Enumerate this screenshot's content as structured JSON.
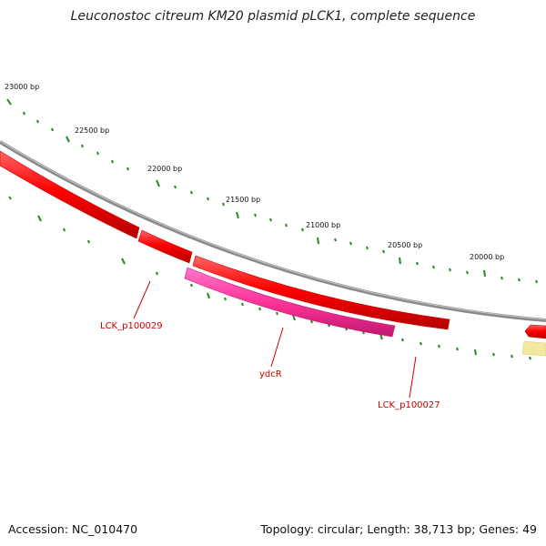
{
  "title": "Leuconostoc citreum KM20 plasmid pLCK1, complete sequence",
  "accession": "Accession: NC_010470",
  "summary": "Topology: circular; Length: 38,713 bp; Genes: 49",
  "tick_labels": [
    "23000 bp",
    "22500 bp",
    "22000 bp",
    "21500 bp",
    "21000 bp",
    "20500 bp",
    "20000 bp"
  ],
  "genes": [
    {
      "name": "LCK_p100029",
      "color": "#ff0000"
    },
    {
      "name": "ydcR",
      "color": "#ff3399"
    },
    {
      "name": "LCK_p100027",
      "color": "#ff0000"
    }
  ],
  "colors": {
    "backbone": "#808080",
    "cds": "#ff0000",
    "ydcR": "#ff3399",
    "ticks": "#228b22",
    "label": "#cc0000",
    "misc_feature": "#f0e68c"
  }
}
